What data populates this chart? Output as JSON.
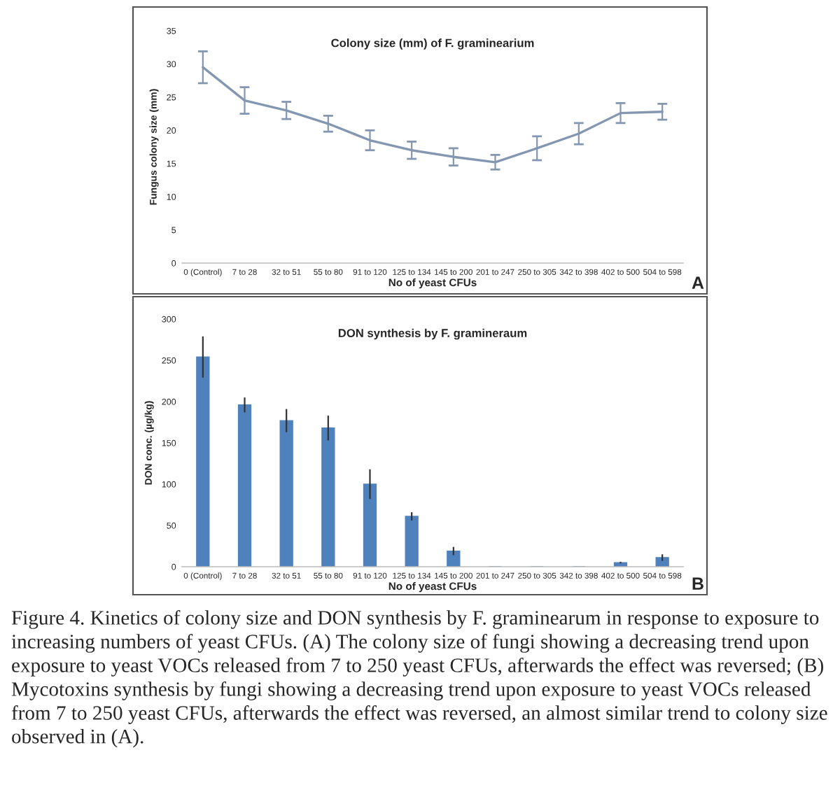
{
  "chart_data": [
    {
      "type": "line",
      "title": "Colony size (mm) of F. graminearium",
      "xlabel": "No of yeast CFUs",
      "ylabel": "Fungus colony size (mm)",
      "categories": [
        "0 (Control)",
        "7 to 28",
        "32 to 51",
        "55 to 80",
        "91 to 120",
        "125 to 134",
        "145 to 200",
        "201 to 247",
        "250 to 305",
        "342 to 398",
        "402 to 500",
        "504 to 598"
      ],
      "series": [
        {
          "color": "#8497b0",
          "values": [
            29.5,
            24.5,
            23,
            21,
            18.5,
            17,
            16,
            15.2,
            17.3,
            19.5,
            22.6,
            22.8
          ],
          "errors": [
            2.4,
            2,
            1.3,
            1.2,
            1.5,
            1.3,
            1.3,
            1.1,
            1.8,
            1.6,
            1.5,
            1.2
          ]
        }
      ],
      "ylim": [
        0,
        35
      ],
      "yticks": [
        0,
        5,
        10,
        15,
        20,
        25,
        30,
        35
      ],
      "grid": false,
      "legend": false,
      "marker": "none",
      "line_style": "solid",
      "annotations": [
        "A"
      ]
    },
    {
      "type": "bar",
      "title": "DON synthesis by F. gramineraum",
      "xlabel": "No of yeast CFUs",
      "ylabel": "DON conc. (µg/kg)",
      "categories": [
        "0 (Control)",
        "7 to 28",
        "32 to 51",
        "55 to 80",
        "91 to 120",
        "125 to 134",
        "145 to 200",
        "201 to 247",
        "250 to 305",
        "342 to 398",
        "402 to 500",
        "504 to 598"
      ],
      "series": [
        {
          "color": "#4f81bd",
          "values": [
            254,
            196,
            177,
            168,
            100,
            61,
            19,
            0,
            0,
            0,
            5,
            11
          ],
          "errors": [
            25,
            9,
            14,
            15,
            18,
            5,
            5,
            null,
            null,
            null,
            1,
            4
          ]
        }
      ],
      "ylim": [
        0,
        300
      ],
      "yticks": [
        0,
        50,
        100,
        150,
        200,
        250,
        300
      ],
      "grid": false,
      "legend": false,
      "annotations": [
        "B",
        "Figure 4. Kinetics of colony size and DON synthesis by F. graminearum in response to exposure to increasing numbers of yeast CFUs. (A) The colony size of fungi showing a decreasing trend upon exposure to yeast VOCs released from 7 to 250 yeast CFUs, afterwards the effect was reversed; (B) Mycotoxins synthesis by fungi showing a decreasing trend upon exposure to yeast VOCs released from 7 to 250 yeast CFUs, afterwards the effect was reversed, an almost similar trend to colony size observed in (A)."
      ]
    }
  ]
}
